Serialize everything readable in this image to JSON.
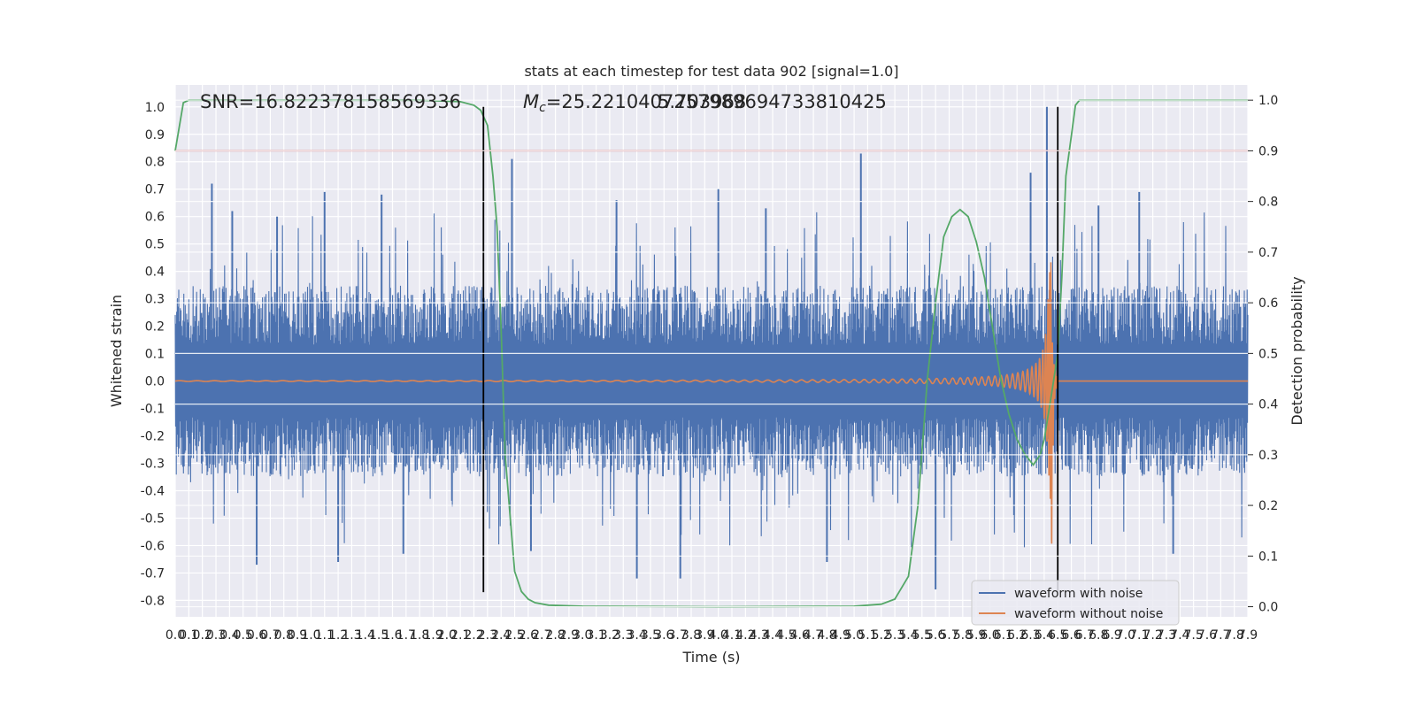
{
  "chart_data": {
    "type": "line",
    "title": "stats at each timestep for test data 902 [signal=1.0]",
    "xlabel": "Time (s)",
    "ylabel": "Whitened strain",
    "ylabel_right": "Detection probability",
    "xlim": [
      0.0,
      7.9
    ],
    "ylim": [
      -0.86,
      1.08
    ],
    "ylim_right": [
      -0.02,
      1.03
    ],
    "xticks": [
      "0.0",
      "0.1",
      "0.2",
      "0.3",
      "0.4",
      "0.5",
      "0.6",
      "0.7",
      "0.8",
      "0.9",
      "1.0",
      "1.1",
      "1.2",
      "1.3",
      "1.4",
      "1.5",
      "1.6",
      "1.7",
      "1.8",
      "1.9",
      "2.0",
      "2.1",
      "2.2",
      "2.3",
      "2.4",
      "2.5",
      "2.6",
      "2.7",
      "2.8",
      "2.9",
      "3.0",
      "3.1",
      "3.2",
      "3.3",
      "3.4",
      "3.5",
      "3.6",
      "3.7",
      "3.8",
      "3.9",
      "4.0",
      "4.1",
      "4.2",
      "4.3",
      "4.4",
      "4.5",
      "4.6",
      "4.7",
      "4.8",
      "4.9",
      "5.0",
      "5.1",
      "5.2",
      "5.3",
      "5.4",
      "5.5",
      "5.6",
      "5.7",
      "5.8",
      "5.9",
      "6.0",
      "6.1",
      "6.2",
      "6.3",
      "6.4",
      "6.5",
      "6.6",
      "6.7",
      "6.8",
      "6.9",
      "7.0",
      "7.1",
      "7.2",
      "7.3",
      "7.4",
      "7.5",
      "7.6",
      "7.7",
      "7.8",
      "7.9"
    ],
    "yticks_left": [
      "1.0",
      "0.9",
      "0.8",
      "0.7",
      "0.6",
      "0.5",
      "0.4",
      "0.3",
      "0.2",
      "0.1",
      "0.0",
      "-0.1",
      "-0.2",
      "-0.3",
      "-0.4",
      "-0.5",
      "-0.6",
      "-0.7",
      "-0.8"
    ],
    "yticks_right": [
      "1.0",
      "0.9",
      "0.8",
      "0.7",
      "0.6",
      "0.5",
      "0.4",
      "0.3",
      "0.2",
      "0.1",
      "0.0"
    ],
    "annotations": {
      "snr": "SNR=16.822378158569336",
      "mc_prefix": "M",
      "mc_sub": "c",
      "mc_value": "=25.2210407257989694733810425",
      "mc_overlap": "5.703968"
    },
    "series": [
      {
        "name": "waveform with noise",
        "color": "#4c72b0",
        "envelope_amplitude": 0.24,
        "spikes": [
          [
            0.27,
            0.72
          ],
          [
            0.42,
            0.62
          ],
          [
            0.6,
            -0.67
          ],
          [
            0.75,
            0.6
          ],
          [
            1.1,
            0.69
          ],
          [
            1.2,
            -0.66
          ],
          [
            1.52,
            0.68
          ],
          [
            1.68,
            -0.63
          ],
          [
            2.48,
            0.81
          ],
          [
            2.62,
            -0.62
          ],
          [
            3.25,
            0.66
          ],
          [
            3.4,
            -0.72
          ],
          [
            3.72,
            -0.72
          ],
          [
            4.0,
            0.7
          ],
          [
            4.35,
            0.63
          ],
          [
            4.8,
            -0.66
          ],
          [
            5.05,
            0.83
          ],
          [
            5.6,
            -0.76
          ],
          [
            6.3,
            0.76
          ],
          [
            6.42,
            1.0
          ],
          [
            6.8,
            0.64
          ],
          [
            7.1,
            0.69
          ],
          [
            7.35,
            -0.63
          ]
        ]
      },
      {
        "name": "waveform without noise",
        "color": "#dd8452",
        "chirp_start_amplitude": 0.005,
        "chirp_peak_amplitude": 0.62,
        "merger_time": 6.45,
        "ringdown_end_time": 6.5
      },
      {
        "name": "",
        "axis": "right",
        "color": "#55a868",
        "x": [
          0.0,
          0.06,
          0.1,
          0.3,
          0.8,
          1.3,
          1.8,
          2.1,
          2.2,
          2.25,
          2.3,
          2.34,
          2.37,
          2.4,
          2.43,
          2.46,
          2.5,
          2.55,
          2.6,
          2.65,
          2.75,
          3.0,
          4.0,
          5.0,
          5.2,
          5.3,
          5.4,
          5.47,
          5.54,
          5.6,
          5.66,
          5.72,
          5.78,
          5.84,
          5.9,
          5.96,
          6.02,
          6.08,
          6.14,
          6.2,
          6.26,
          6.32,
          6.37,
          6.4,
          6.43,
          6.46,
          6.5,
          6.53,
          6.56,
          6.6,
          6.63,
          6.66,
          6.7,
          6.75,
          6.8,
          7.0,
          7.9
        ],
        "y": [
          0.9,
          0.995,
          1.0,
          1.0,
          1.0,
          1.0,
          1.0,
          0.997,
          0.99,
          0.98,
          0.95,
          0.85,
          0.75,
          0.55,
          0.3,
          0.2,
          0.07,
          0.03,
          0.015,
          0.008,
          0.003,
          0.001,
          0.0,
          0.001,
          0.005,
          0.015,
          0.06,
          0.2,
          0.45,
          0.6,
          0.73,
          0.77,
          0.784,
          0.77,
          0.72,
          0.65,
          0.55,
          0.45,
          0.38,
          0.33,
          0.3,
          0.28,
          0.3,
          0.33,
          0.38,
          0.43,
          0.5,
          0.65,
          0.85,
          0.93,
          0.99,
          1.0,
          1.0,
          1.0,
          1.0,
          1.0,
          1.0
        ]
      }
    ],
    "threshold": {
      "axis": "right",
      "value": 0.9,
      "color": "#c44e52"
    },
    "vertical_lines": [
      {
        "x": 2.27,
        "y_from": -0.77,
        "y_to": 1.0,
        "color": "#000000"
      },
      {
        "x": 6.5,
        "y_from": -0.77,
        "y_to": 1.0,
        "color": "#000000"
      }
    ],
    "legend": {
      "placement": "lower-right"
    },
    "grid": true,
    "background": "#eaeaf2",
    "spine_color": "#ffffff"
  }
}
